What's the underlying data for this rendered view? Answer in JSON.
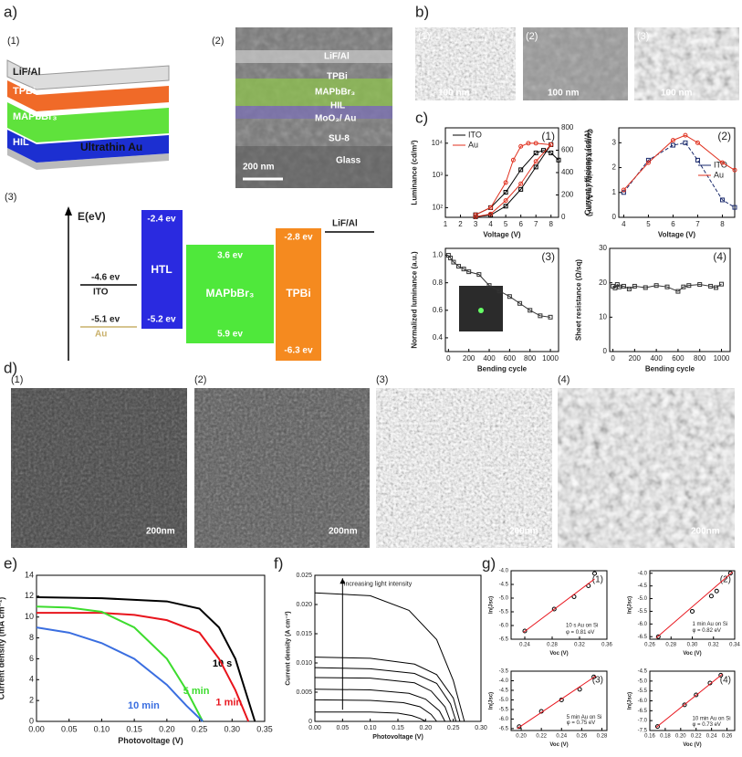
{
  "panel_labels": [
    "a)",
    "b)",
    "c)",
    "d)",
    "e)",
    "f)",
    "g)"
  ],
  "a": {
    "sub_labels": [
      "(1)",
      "(2)",
      "(3)"
    ],
    "stack_layers": [
      "LiF/Al",
      "TPBi",
      "MAPbBr₃",
      "HIL",
      "Ultrathin Au"
    ],
    "cross_section_layers": [
      "LiF/Al",
      "TPBi",
      "MAPbBr₃",
      "HIL",
      "MoO₃/ Au",
      "SU-8",
      "Glass"
    ],
    "cross_section_scale": "200 nm",
    "energy": {
      "axis_label": "E(eV)",
      "labels": [
        "-4.6 ev",
        "ITO",
        "-5.1 ev",
        "Au",
        "HTL",
        "-2.4 ev",
        "-5.2 ev",
        "MAPbBr₃",
        "3.6 ev",
        "5.9 ev",
        "TPBi",
        "-2.8 ev",
        "-6.3 ev",
        "LiF/Al"
      ]
    }
  },
  "b": {
    "sub_labels": [
      "(1)",
      "(2)",
      "(3)"
    ],
    "scale": "100 nm"
  },
  "d": {
    "sub_labels": [
      "(1)",
      "(2)",
      "(3)",
      "(4)"
    ],
    "scale": "200nm"
  },
  "chart_data": [
    {
      "type": "line",
      "panel_label": "(1)",
      "xlabel": "Voltage (V)",
      "ylabel": "Luminance (cd/m²)",
      "y2label": "Current density (mA/cm²)",
      "xlim": [
        1,
        8.5
      ],
      "xticks": [
        1,
        2,
        3,
        4,
        5,
        6,
        7,
        8
      ],
      "ylog": true,
      "ylim": [
        50,
        30000
      ],
      "yticks": [
        {
          "value": 100,
          "label": "10²"
        },
        {
          "value": 1000,
          "label": "10³"
        },
        {
          "value": 10000,
          "label": "10⁴"
        }
      ],
      "y2lim": [
        0,
        800
      ],
      "y2ticks": [
        0,
        200,
        400,
        600,
        800
      ],
      "legend": "upper left",
      "series": [
        {
          "name": "ITO",
          "color": "#000000",
          "marker": "square",
          "x": [
            3,
            4,
            5,
            6,
            7,
            7.5,
            8,
            8.5
          ],
          "values": [
            60,
            100,
            300,
            1500,
            5000,
            6000,
            5000,
            3000
          ]
        },
        {
          "name": "Au",
          "color": "#e0301e",
          "marker": "circle",
          "x": [
            3,
            4,
            5,
            5.5,
            6,
            6.5,
            7,
            8
          ],
          "values": [
            60,
            100,
            600,
            3000,
            8000,
            10000,
            10000,
            9000
          ]
        },
        {
          "color": "#000000",
          "marker": "square",
          "axis": "y2",
          "x": [
            3,
            4,
            5,
            6,
            7,
            8
          ],
          "values": [
            5,
            20,
            100,
            250,
            450,
            650
          ]
        },
        {
          "color": "#e0301e",
          "marker": "circle",
          "axis": "y2",
          "x": [
            3,
            4,
            5,
            6,
            7,
            8
          ],
          "values": [
            5,
            30,
            150,
            300,
            500,
            650
          ]
        }
      ]
    },
    {
      "type": "line",
      "panel_label": "(2)",
      "xlabel": "Voltage (V)",
      "ylabel": "Current efficiency (cd/A)",
      "xlim": [
        3.8,
        8.5
      ],
      "xticks": [
        4,
        5,
        6,
        7,
        8
      ],
      "ylim": [
        0,
        3.6
      ],
      "yticks": [
        0,
        1,
        2,
        3
      ],
      "legend": "center right",
      "series": [
        {
          "name": "ITO",
          "color": "#1a2a6c",
          "marker": "square",
          "dash": true,
          "x": [
            4,
            5,
            6,
            6.5,
            7,
            8,
            8.5
          ],
          "values": [
            1.0,
            2.3,
            2.9,
            3.0,
            2.3,
            0.7,
            0.4
          ]
        },
        {
          "name": "Au",
          "color": "#e0301e",
          "marker": "circle",
          "x": [
            4,
            5,
            6,
            6.5,
            7,
            8,
            8.5
          ],
          "values": [
            1.1,
            2.2,
            3.1,
            3.3,
            3.0,
            2.2,
            1.9
          ]
        }
      ]
    },
    {
      "type": "line",
      "panel_label": "(3)",
      "xlabel": "Bending cycle",
      "ylabel": "Normalized luminance (a.u.)",
      "xlim": [
        -30,
        1080
      ],
      "xticks": [
        0,
        200,
        400,
        600,
        800,
        1000
      ],
      "ylim": [
        0.3,
        1.05
      ],
      "yticks": [
        0.4,
        0.6,
        0.8,
        {
          "value": 1,
          "label": "1.0"
        }
      ],
      "series": [
        {
          "color": "#333333",
          "marker": "square",
          "x": [
            0,
            20,
            50,
            100,
            150,
            200,
            300,
            400,
            500,
            600,
            700,
            800,
            900,
            1000
          ],
          "values": [
            1.0,
            0.98,
            0.95,
            0.92,
            0.9,
            0.88,
            0.86,
            0.78,
            0.74,
            0.7,
            0.65,
            0.6,
            0.56,
            0.55
          ]
        }
      ]
    },
    {
      "type": "line",
      "panel_label": "(4)",
      "xlabel": "Bending cycle",
      "ylabel": "Sheet resistance (Ω/sq)",
      "xlim": [
        -30,
        1080
      ],
      "xticks": [
        0,
        200,
        400,
        600,
        800,
        1000
      ],
      "ylim": [
        0,
        30
      ],
      "yticks": [
        0,
        10,
        20,
        30
      ],
      "series": [
        {
          "color": "#333333",
          "marker": "square",
          "x": [
            0,
            20,
            40,
            60,
            100,
            150,
            200,
            300,
            400,
            500,
            600,
            650,
            700,
            800,
            900,
            950,
            1000
          ],
          "values": [
            19,
            18.5,
            19.5,
            18.8,
            19,
            18.2,
            19,
            18.6,
            19.2,
            18.8,
            17.5,
            18.8,
            19.2,
            19.5,
            19,
            18.6,
            19.6
          ]
        }
      ]
    },
    {
      "type": "line",
      "panel_label": null,
      "xlabel": "Photovoltage (V)",
      "ylabel": "Current density (mA cm⁻²)",
      "xlim": [
        0,
        0.35
      ],
      "xticks": [
        {
          "value": 0,
          "label": "0.00"
        },
        0.05,
        {
          "value": 0.1,
          "label": "0.10"
        },
        0.15,
        {
          "value": 0.2,
          "label": "0.20"
        },
        0.25,
        {
          "value": 0.3,
          "label": "0.30"
        },
        0.35
      ],
      "ylim": [
        0,
        14
      ],
      "yticks": [
        0,
        2,
        4,
        6,
        8,
        10,
        12,
        14
      ],
      "legend": "curve labels",
      "series": [
        {
          "name": "10 s",
          "color": "#000000",
          "x": [
            0,
            0.1,
            0.2,
            0.25,
            0.28,
            0.305,
            0.32,
            0.335
          ],
          "values": [
            11.9,
            11.8,
            11.5,
            10.8,
            9,
            6,
            3,
            0
          ]
        },
        {
          "name": "1 min",
          "color": "#e8141c",
          "x": [
            0,
            0.1,
            0.15,
            0.2,
            0.25,
            0.28,
            0.305,
            0.325
          ],
          "values": [
            10.4,
            10.4,
            10.2,
            9.7,
            8.5,
            6,
            3,
            0
          ]
        },
        {
          "name": "5 min",
          "color": "#3ddc2e",
          "x": [
            0,
            0.05,
            0.1,
            0.15,
            0.2,
            0.23,
            0.255
          ],
          "values": [
            11.0,
            10.9,
            10.5,
            9,
            6,
            3,
            0
          ]
        },
        {
          "name": "10 min",
          "color": "#3a6ee0",
          "x": [
            0,
            0.05,
            0.1,
            0.15,
            0.2,
            0.23,
            0.255
          ],
          "values": [
            9,
            8.5,
            7.5,
            6,
            3.5,
            1.5,
            0
          ]
        }
      ]
    },
    {
      "type": "line",
      "panel_label": null,
      "xlabel": "Photovoltage (V)",
      "ylabel": "Current density (A cm⁻²)",
      "annotations": [
        "Increasing light intensity"
      ],
      "xlim": [
        0,
        0.3
      ],
      "xticks": [
        {
          "value": 0,
          "label": "0.00"
        },
        0.05,
        {
          "value": 0.1,
          "label": "0.10"
        },
        0.15,
        {
          "value": 0.2,
          "label": "0.20"
        },
        0.25,
        {
          "value": 0.3,
          "label": "0.30"
        }
      ],
      "ylim": [
        0,
        0.025
      ],
      "yticks": [
        0,
        0.005,
        {
          "value": 0.01,
          "label": "0.010"
        },
        0.015,
        {
          "value": 0.02,
          "label": "0.020"
        },
        0.025
      ],
      "series": [
        {
          "color": "#000000",
          "x": [
            0,
            0.1,
            0.17,
            0.22,
            0.25,
            0.27
          ],
          "values": [
            0.022,
            0.0215,
            0.019,
            0.014,
            0.007,
            0
          ]
        },
        {
          "color": "#000000",
          "x": [
            0,
            0.1,
            0.18,
            0.22,
            0.25,
            0.262
          ],
          "values": [
            0.011,
            0.0108,
            0.0098,
            0.008,
            0.004,
            0
          ]
        },
        {
          "color": "#000000",
          "x": [
            0,
            0.1,
            0.18,
            0.22,
            0.245,
            0.255
          ],
          "values": [
            0.0092,
            0.009,
            0.0082,
            0.0065,
            0.003,
            0
          ]
        },
        {
          "color": "#000000",
          "x": [
            0,
            0.1,
            0.18,
            0.21,
            0.235,
            0.245
          ],
          "values": [
            0.0075,
            0.0074,
            0.0066,
            0.0052,
            0.0025,
            0
          ]
        },
        {
          "color": "#000000",
          "x": [
            0,
            0.1,
            0.17,
            0.2,
            0.225,
            0.235
          ],
          "values": [
            0.0055,
            0.0054,
            0.0048,
            0.0038,
            0.0018,
            0
          ]
        },
        {
          "color": "#000000",
          "x": [
            0,
            0.1,
            0.16,
            0.19,
            0.21,
            0.22
          ],
          "values": [
            0.0037,
            0.0036,
            0.0032,
            0.0025,
            0.0012,
            0
          ]
        },
        {
          "color": "#000000",
          "x": [
            0,
            0.1,
            0.15,
            0.175,
            0.19,
            0.2
          ],
          "values": [
            0.0016,
            0.0016,
            0.0014,
            0.001,
            0.0005,
            0
          ]
        }
      ]
    },
    {
      "type": "line",
      "panel_label": "(1)",
      "xlabel": "Voc (V)",
      "ylabel": "ln(Jsc)",
      "annotations": [
        "10 s Au on Si",
        "φ = 0.81 eV"
      ],
      "xlim": [
        0.22,
        0.36
      ],
      "xticks": [
        0.24,
        0.28,
        0.32,
        0.36
      ],
      "ylim": [
        -6.5,
        -4
      ],
      "yticks": [
        -6.5,
        {
          "value": -6,
          "label": "-6.0"
        },
        -5.5,
        {
          "value": -5,
          "label": "-5.0"
        },
        -4.5,
        {
          "value": -4,
          "label": "-4.0"
        }
      ],
      "series": [
        {
          "color": "#000000",
          "marker": "circle",
          "nolines": true,
          "x": [
            0.24,
            0.283,
            0.312,
            0.333,
            0.342
          ],
          "values": [
            -6.2,
            -5.4,
            -4.95,
            -4.55,
            -4.1
          ]
        },
        {
          "color": "#e8141c",
          "x": [
            0.238,
            0.342
          ],
          "values": [
            -6.25,
            -4.3
          ]
        }
      ]
    },
    {
      "type": "line",
      "panel_label": "(2)",
      "xlabel": "Voc (V)",
      "ylabel": "ln(Jsc)",
      "annotations": [
        "1 min Au on Si",
        "φ = 0.82 eV"
      ],
      "xlim": [
        0.26,
        0.34
      ],
      "xticks": [
        0.26,
        0.28,
        {
          "value": 0.3,
          "label": "0.30"
        },
        0.32,
        0.34
      ],
      "ylim": [
        -6.6,
        -3.9
      ],
      "yticks": [
        -6.5,
        {
          "value": -6,
          "label": "-6.0"
        },
        -5.5,
        {
          "value": -5,
          "label": "-5.0"
        },
        -4.5,
        {
          "value": -4,
          "label": "-4.0"
        }
      ],
      "series": [
        {
          "color": "#000000",
          "marker": "circle",
          "nolines": true,
          "x": [
            0.268,
            0.3,
            0.318,
            0.323,
            0.336
          ],
          "values": [
            -6.5,
            -5.5,
            -4.9,
            -4.7,
            -4.0
          ]
        },
        {
          "color": "#e8141c",
          "x": [
            0.266,
            0.338
          ],
          "values": [
            -6.55,
            -3.95
          ]
        }
      ]
    },
    {
      "type": "line",
      "panel_label": "(3)",
      "xlabel": "Voc (V)",
      "ylabel": "ln(Jsc)",
      "annotations": [
        "5 min Au on Si",
        "φ = 0.75 eV"
      ],
      "xlim": [
        0.19,
        0.285
      ],
      "xticks": [
        {
          "value": 0.2,
          "label": "0.20"
        },
        0.22,
        0.24,
        0.26,
        0.28
      ],
      "ylim": [
        -6.6,
        -3.5
      ],
      "yticks": [
        -6.5,
        {
          "value": -6,
          "label": "-6.0"
        },
        -5.5,
        {
          "value": -5,
          "label": "-5.0"
        },
        -4.5,
        {
          "value": -4,
          "label": "-4.0"
        },
        -3.5
      ],
      "series": [
        {
          "color": "#000000",
          "marker": "circle",
          "nolines": true,
          "x": [
            0.198,
            0.22,
            0.24,
            0.258,
            0.272
          ],
          "values": [
            -6.4,
            -5.6,
            -5.0,
            -4.45,
            -3.8
          ]
        },
        {
          "color": "#e8141c",
          "x": [
            0.196,
            0.274
          ],
          "values": [
            -6.5,
            -3.75
          ]
        }
      ]
    },
    {
      "type": "line",
      "panel_label": "(4)",
      "xlabel": "Voc (V)",
      "ylabel": "ln(Jsc)",
      "annotations": [
        "10 min Au on Si",
        "φ = 0.73 eV"
      ],
      "xlim": [
        0.16,
        0.27
      ],
      "xticks": [
        0.16,
        0.18,
        {
          "value": 0.2,
          "label": "0.20"
        },
        0.22,
        0.24,
        0.26
      ],
      "ylim": [
        -7.5,
        -4.5
      ],
      "yticks": [
        -7.5,
        {
          "value": -7,
          "label": "-7.0"
        },
        -6.5,
        {
          "value": -6,
          "label": "-6.0"
        },
        -5.5,
        {
          "value": -5,
          "label": "-5.0"
        },
        -4.5
      ],
      "series": [
        {
          "color": "#000000",
          "marker": "circle",
          "nolines": true,
          "x": [
            0.17,
            0.205,
            0.22,
            0.238,
            0.252
          ],
          "values": [
            -7.3,
            -6.2,
            -5.7,
            -5.1,
            -4.7
          ]
        },
        {
          "color": "#e8141c",
          "x": [
            0.168,
            0.254
          ],
          "values": [
            -7.35,
            -4.65
          ]
        }
      ]
    }
  ]
}
